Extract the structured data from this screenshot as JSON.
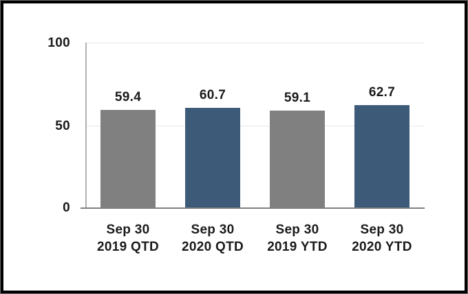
{
  "chart_data": {
    "type": "bar",
    "title": "",
    "xlabel": "",
    "ylabel": "",
    "ylim": [
      0,
      100
    ],
    "yticks": [
      "100",
      "50",
      "0"
    ],
    "grid": true,
    "legend": false,
    "categories": [
      {
        "line1": "Sep 30",
        "line2": "2019 QTD"
      },
      {
        "line1": "Sep 30",
        "line2": "2020 QTD"
      },
      {
        "line1": "Sep 30",
        "line2": "2019 YTD"
      },
      {
        "line1": "Sep 30",
        "line2": "2020 YTD"
      }
    ],
    "values": [
      59.4,
      60.7,
      59.1,
      62.7
    ],
    "value_labels": [
      "59.4",
      "60.7",
      "59.1",
      "62.7"
    ],
    "bar_colors": [
      "#808080",
      "#3D5A78",
      "#808080",
      "#3D5A78"
    ],
    "colors": {
      "bar_gray": "#808080",
      "bar_blue": "#3D5A78",
      "gridline": "#e7e7e7",
      "y_axis_line": "#b0b0b0",
      "baseline": "#7f7f7f",
      "text": "#1a1a1a",
      "frame": "#000000"
    }
  }
}
